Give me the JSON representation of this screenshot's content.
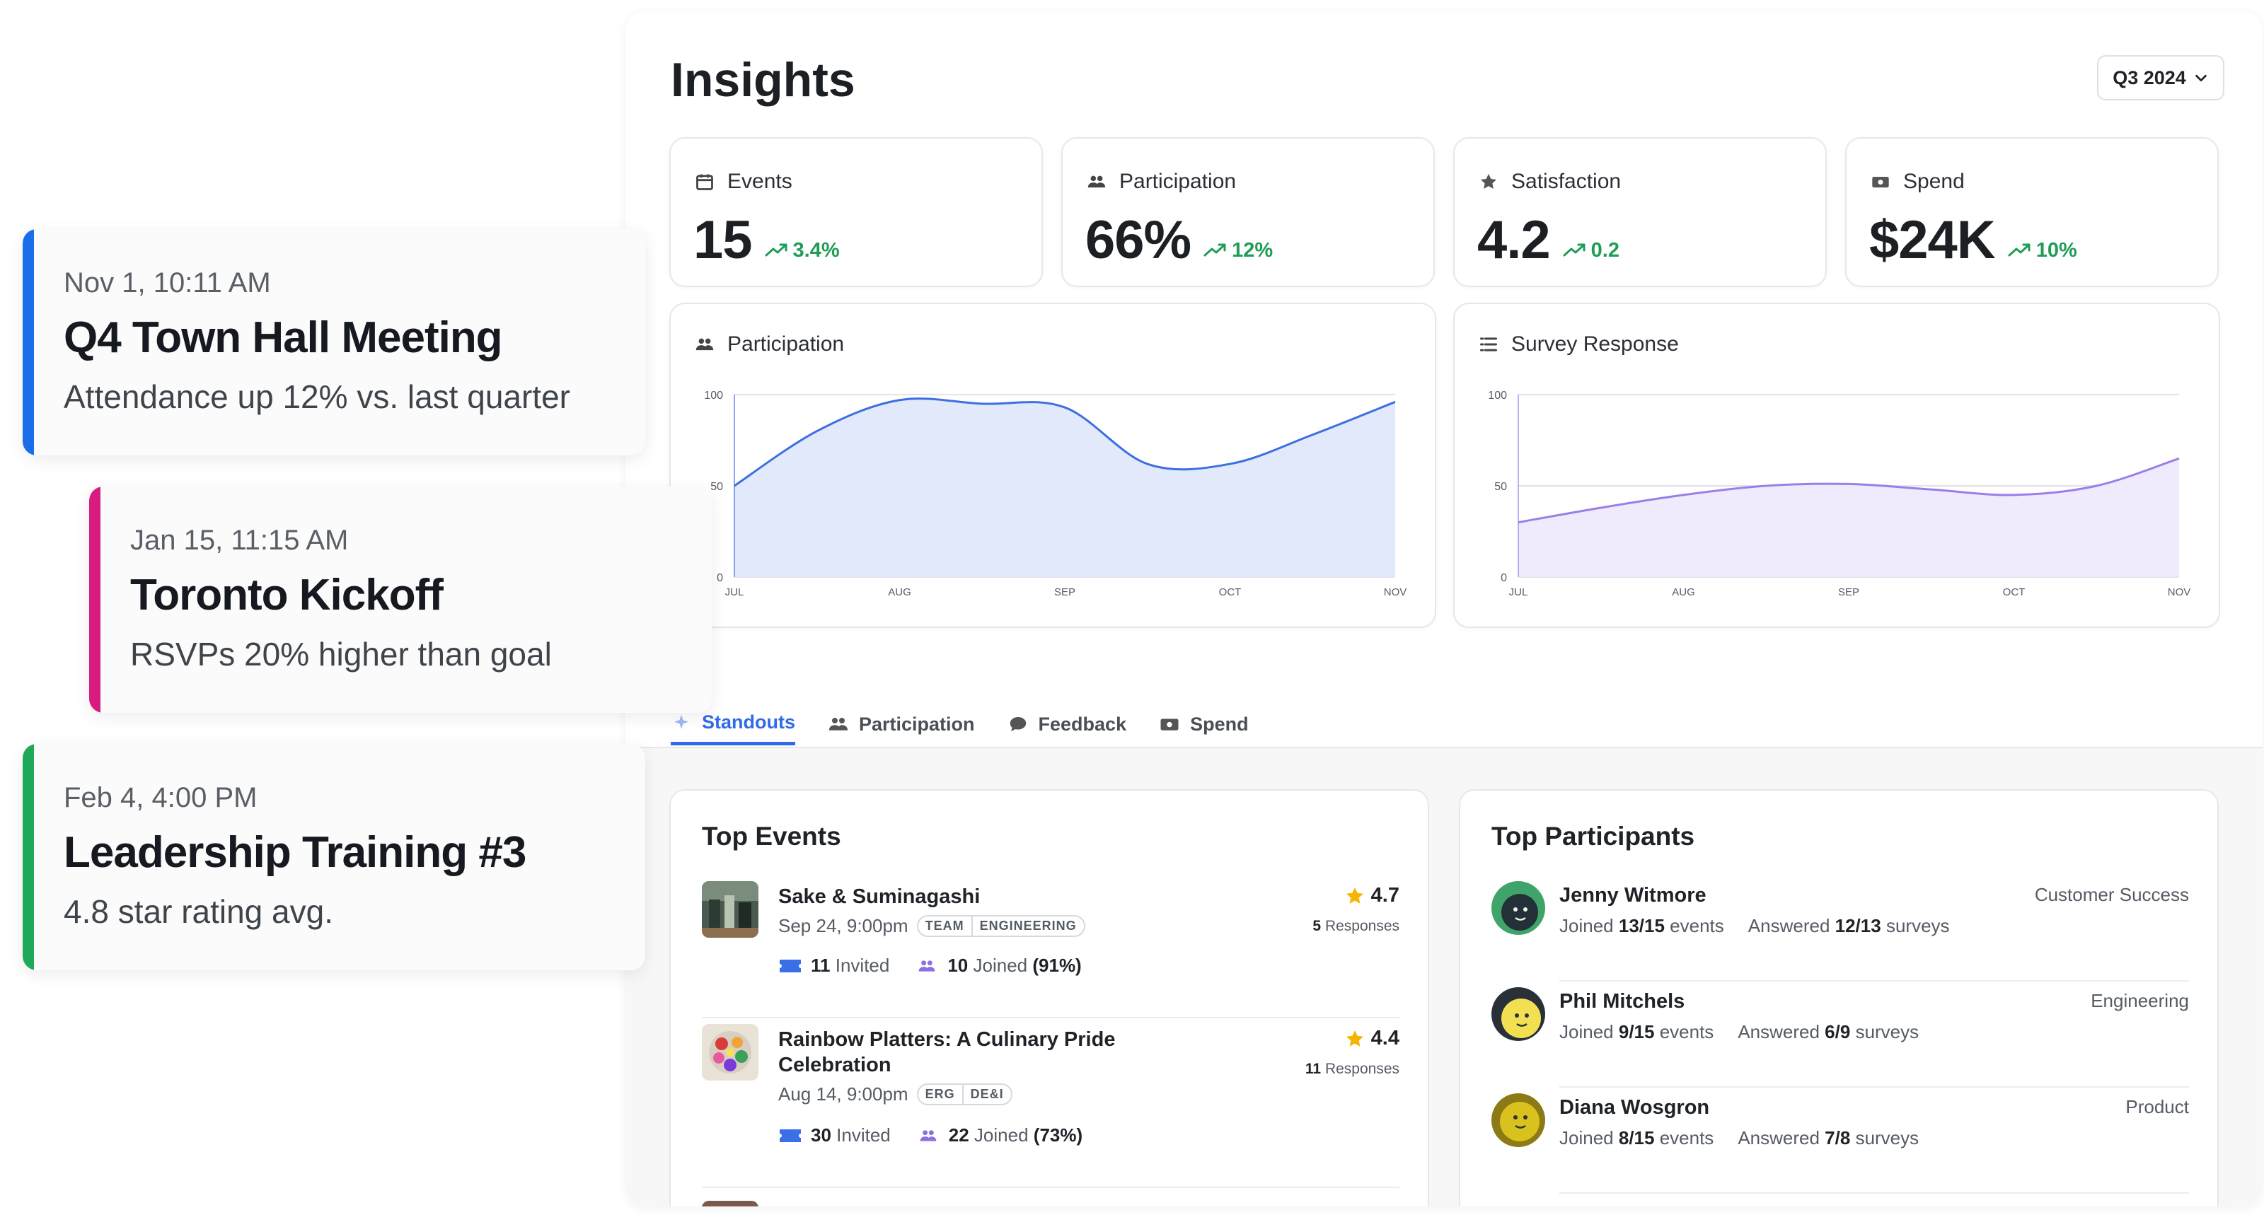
{
  "insights": {
    "title": "Insights",
    "period": "Q3 2024"
  },
  "kpis": [
    {
      "label": "Events",
      "icon": "calendar-icon",
      "value": "15",
      "delta": "3.4%"
    },
    {
      "label": "Participation",
      "icon": "people-icon",
      "value": "66%",
      "delta": "12%"
    },
    {
      "label": "Satisfaction",
      "icon": "star-icon",
      "value": "4.2",
      "delta": "0.2"
    },
    {
      "label": "Spend",
      "icon": "cash-icon",
      "value": "$24K",
      "delta": "10%"
    }
  ],
  "colors": {
    "positive": "#1f9d55",
    "accent": "#2f6be8",
    "participation_line": "#3e6fe0",
    "participation_fill": "#dfe8fb",
    "survey_line": "#9b7ee8",
    "survey_fill": "#efeafc",
    "card_blue": "#1a6ee8",
    "card_pink": "#d81b7f",
    "card_green": "#1faa59"
  },
  "chart_data": [
    {
      "type": "area",
      "title": "Participation",
      "categories": [
        "JUL",
        "AUG",
        "SEP",
        "OCT",
        "NOV"
      ],
      "x": [
        0,
        0.5,
        1,
        1.5,
        2,
        2.5,
        3,
        3.5,
        4
      ],
      "values": [
        50,
        80,
        97,
        95,
        93,
        62,
        62,
        78,
        96
      ],
      "ylim": [
        0,
        100
      ],
      "yticks": [
        0,
        50,
        100
      ],
      "grid": true
    },
    {
      "type": "area",
      "title": "Survey Response",
      "categories": [
        "JUL",
        "AUG",
        "SEP",
        "OCT",
        "NOV"
      ],
      "x": [
        0,
        0.5,
        1,
        1.5,
        2,
        2.5,
        3,
        3.5,
        4
      ],
      "values": [
        30,
        38,
        45,
        50,
        51,
        48,
        45,
        50,
        65
      ],
      "ylim": [
        0,
        100
      ],
      "yticks": [
        0,
        50,
        100
      ],
      "grid": true
    }
  ],
  "tabs": [
    {
      "label": "Standouts",
      "icon": "sparkle-icon"
    },
    {
      "label": "Participation",
      "icon": "people-icon"
    },
    {
      "label": "Feedback",
      "icon": "chat-icon"
    },
    {
      "label": "Spend",
      "icon": "cash-icon"
    }
  ],
  "top_events": {
    "title": "Top Events",
    "items": [
      {
        "name": "Sake & Suminagashi",
        "date": "Sep 24, 9:00pm",
        "tags": [
          "TEAM",
          "ENGINEERING"
        ],
        "rating": "4.7",
        "responses_count": "5",
        "responses_label": "Responses",
        "invited_count": "11",
        "invited_label": "Invited",
        "joined_count": "10",
        "joined_label": "Joined",
        "joined_pct": "(91%)"
      },
      {
        "name": "Rainbow Platters: A Culinary Pride Celebration",
        "date": "Aug 14, 9:00pm",
        "tags": [
          "ERG",
          "DE&I"
        ],
        "rating": "4.4",
        "responses_count": "11",
        "responses_label": "Responses",
        "invited_count": "30",
        "invited_label": "Invited",
        "joined_count": "22",
        "joined_label": "Joined",
        "joined_pct": "(73%)"
      }
    ]
  },
  "top_participants": {
    "title": "Top Participants",
    "items": [
      {
        "name": "Jenny Witmore",
        "dept": "Customer Success",
        "joined_word": "Joined",
        "joined": "13/15",
        "events_word": "events",
        "answered_word": "Answered",
        "answered": "12/13",
        "surveys_word": "surveys"
      },
      {
        "name": "Phil Mitchels",
        "dept": "Engineering",
        "joined_word": "Joined",
        "joined": "9/15",
        "events_word": "events",
        "answered_word": "Answered",
        "answered": "6/9",
        "surveys_word": "surveys"
      },
      {
        "name": "Diana Wosgron",
        "dept": "Product",
        "joined_word": "Joined",
        "joined": "8/15",
        "events_word": "events",
        "answered_word": "Answered",
        "answered": "7/8",
        "surveys_word": "surveys"
      }
    ]
  },
  "notifications": [
    {
      "when": "Nov 1, 10:11 AM",
      "title": "Q4 Town Hall Meeting",
      "detail": "Attendance up 12% vs. last quarter"
    },
    {
      "when": "Jan 15, 11:15 AM",
      "title": "Toronto Kickoff",
      "detail": "RSVPs 20% higher than goal"
    },
    {
      "when": "Feb 4, 4:00 PM",
      "title": "Leadership Training #3",
      "detail": "4.8 star rating avg."
    }
  ]
}
